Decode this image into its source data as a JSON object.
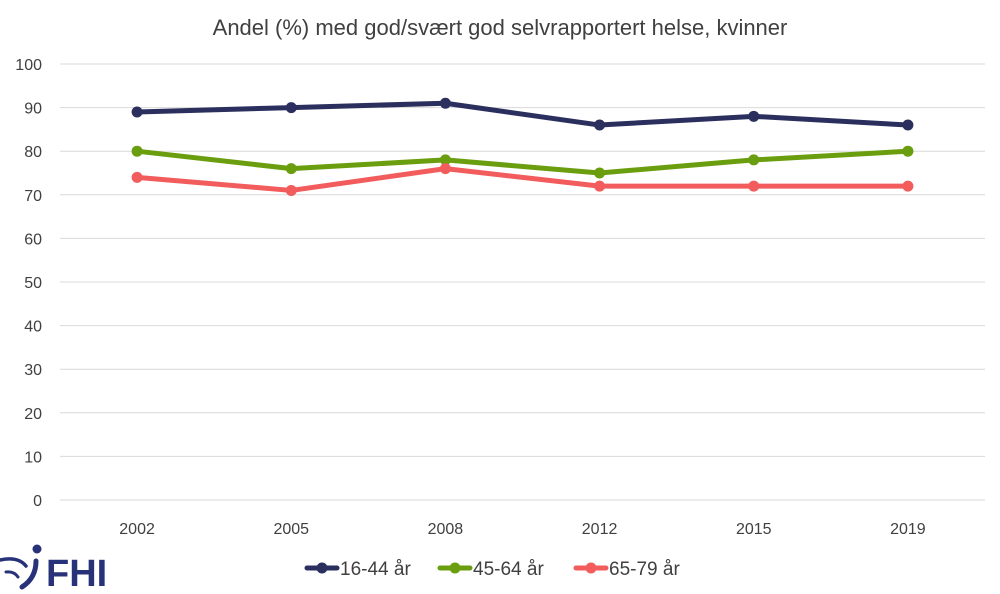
{
  "logo": {
    "text": "FHI",
    "color": "#283278"
  },
  "chart_data": {
    "type": "line",
    "title": "Andel (%) med god/svært god selvrapportert helse, kvinner",
    "xlabel": "",
    "ylabel": "",
    "categories": [
      "2002",
      "2005",
      "2008",
      "2012",
      "2015",
      "2019"
    ],
    "ylim": [
      0,
      100
    ],
    "yticks": [
      0,
      10,
      20,
      30,
      40,
      50,
      60,
      70,
      80,
      90,
      100
    ],
    "grid": true,
    "legend_position": "bottom",
    "series": [
      {
        "name": "16-44 år",
        "color": "#2B2F5E",
        "values": [
          89,
          90,
          91,
          86,
          88,
          86
        ]
      },
      {
        "name": "45-64 år",
        "color": "#6A9E0F",
        "values": [
          80,
          76,
          78,
          75,
          78,
          80
        ]
      },
      {
        "name": "65-79 år",
        "color": "#F25C5C",
        "values": [
          74,
          71,
          76,
          72,
          72,
          72
        ]
      }
    ]
  }
}
